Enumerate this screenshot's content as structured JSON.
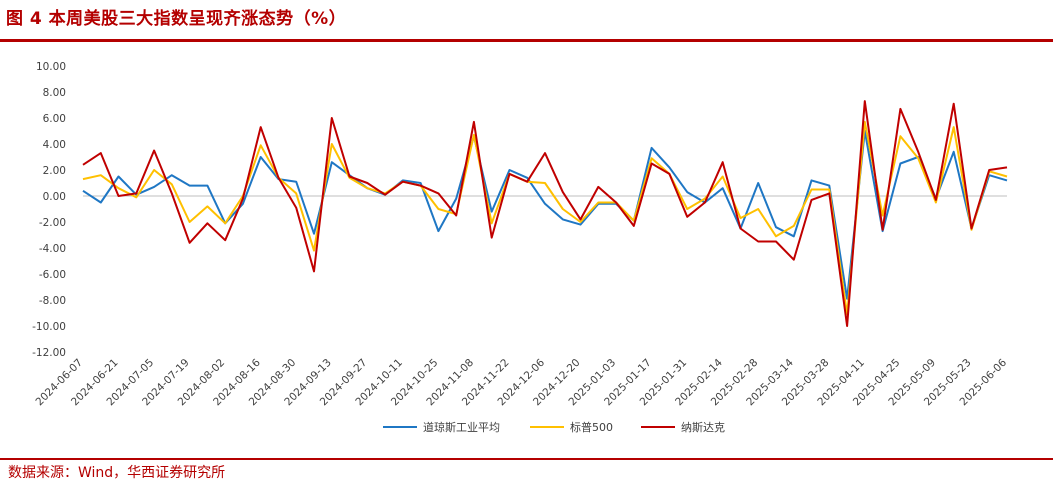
{
  "figure": {
    "title": "图 4 本周美股三大指数呈现齐涨态势（%）",
    "source": "数据来源：Wind，华西证券研究所"
  },
  "colors": {
    "dow": "#1f77c4",
    "sp500": "#ffc000",
    "nasdaq": "#c00000",
    "accent": "#b40000"
  },
  "chart_data": {
    "type": "line",
    "title": "本周美股三大指数呈现齐涨态势（%）",
    "ylim": [
      -12,
      10
    ],
    "yticks": [
      "10.00",
      "8.00",
      "6.00",
      "4.00",
      "2.00",
      "0.00",
      "-2.00",
      "-4.00",
      "-6.00",
      "-8.00",
      "-10.00",
      "-12.00"
    ],
    "grid": false,
    "legend_position": "bottom",
    "x_tick_labels": [
      "2024-06-07",
      "2024-06-21",
      "2024-07-05",
      "2024-07-19",
      "2024-08-02",
      "2024-08-16",
      "2024-08-30",
      "2024-09-13",
      "2024-09-27",
      "2024-10-11",
      "2024-10-25",
      "2024-11-08",
      "2024-11-22",
      "2024-12-06",
      "2024-12-20",
      "2025-01-03",
      "2025-01-17",
      "2025-01-31",
      "2025-02-14",
      "2025-02-28",
      "2025-03-14",
      "2025-03-28",
      "2025-04-11",
      "2025-04-25",
      "2025-05-09",
      "2025-05-23",
      "2025-06-06"
    ],
    "x": [
      "2024-06-07",
      "2024-06-14",
      "2024-06-21",
      "2024-06-28",
      "2024-07-05",
      "2024-07-12",
      "2024-07-19",
      "2024-07-26",
      "2024-08-02",
      "2024-08-09",
      "2024-08-16",
      "2024-08-23",
      "2024-08-30",
      "2024-09-06",
      "2024-09-13",
      "2024-09-20",
      "2024-09-27",
      "2024-10-04",
      "2024-10-11",
      "2024-10-18",
      "2024-10-25",
      "2024-11-01",
      "2024-11-08",
      "2024-11-15",
      "2024-11-22",
      "2024-11-29",
      "2024-12-06",
      "2024-12-13",
      "2024-12-20",
      "2024-12-27",
      "2025-01-03",
      "2025-01-10",
      "2025-01-17",
      "2025-01-24",
      "2025-01-31",
      "2025-02-07",
      "2025-02-14",
      "2025-02-21",
      "2025-02-28",
      "2025-03-07",
      "2025-03-14",
      "2025-03-21",
      "2025-03-28",
      "2025-04-04",
      "2025-04-11",
      "2025-04-18",
      "2025-04-25",
      "2025-05-02",
      "2025-05-09",
      "2025-05-16",
      "2025-05-23",
      "2025-05-30",
      "2025-06-06"
    ],
    "series": [
      {
        "name": "道琼斯工业平均",
        "color_key": "dow",
        "values": [
          0.4,
          -0.5,
          1.5,
          0.1,
          0.7,
          1.6,
          0.8,
          0.8,
          -2.1,
          -0.6,
          3.0,
          1.3,
          1.1,
          -2.9,
          2.6,
          1.6,
          0.6,
          0.1,
          1.2,
          1.0,
          -2.7,
          -0.2,
          4.6,
          -1.2,
          2.0,
          1.4,
          -0.6,
          -1.8,
          -2.2,
          -0.6,
          -0.6,
          -1.9,
          3.7,
          2.2,
          0.3,
          -0.5,
          0.6,
          -2.5,
          1.0,
          -2.4,
          -3.1,
          1.2,
          0.8,
          -7.9,
          5.0,
          -2.7,
          2.5,
          3.0,
          -0.2,
          3.4,
          -2.5,
          1.6,
          1.2
        ]
      },
      {
        "name": "标普500",
        "color_key": "sp500",
        "values": [
          1.3,
          1.6,
          0.6,
          -0.1,
          2.0,
          0.9,
          -2.0,
          -0.8,
          -2.1,
          0.0,
          3.9,
          1.4,
          0.2,
          -4.2,
          4.0,
          1.4,
          0.6,
          0.2,
          1.1,
          0.8,
          -1.0,
          -1.4,
          4.7,
          -2.1,
          1.7,
          1.1,
          1.0,
          -1.0,
          -2.0,
          -0.5,
          -0.5,
          -1.9,
          2.9,
          1.7,
          -1.0,
          -0.2,
          1.5,
          -1.7,
          -1.0,
          -3.1,
          -2.3,
          0.5,
          0.5,
          -9.1,
          5.7,
          -1.5,
          4.6,
          2.9,
          -0.5,
          5.3,
          -2.6,
          1.9,
          1.5
        ]
      },
      {
        "name": "纳斯达克",
        "color_key": "nasdaq",
        "values": [
          2.4,
          3.3,
          0.0,
          0.2,
          3.5,
          0.2,
          -3.6,
          -2.1,
          -3.4,
          -0.2,
          5.3,
          1.4,
          -0.9,
          -5.8,
          6.0,
          1.5,
          1.0,
          0.1,
          1.1,
          0.8,
          0.2,
          -1.5,
          5.7,
          -3.2,
          1.7,
          1.1,
          3.3,
          0.3,
          -1.8,
          0.7,
          -0.5,
          -2.3,
          2.5,
          1.7,
          -1.6,
          -0.5,
          2.6,
          -2.5,
          -3.5,
          -3.5,
          -4.9,
          -0.3,
          0.2,
          -10.0,
          7.3,
          -2.6,
          6.7,
          3.4,
          -0.3,
          7.1,
          -2.5,
          2.0,
          2.2
        ]
      }
    ]
  }
}
